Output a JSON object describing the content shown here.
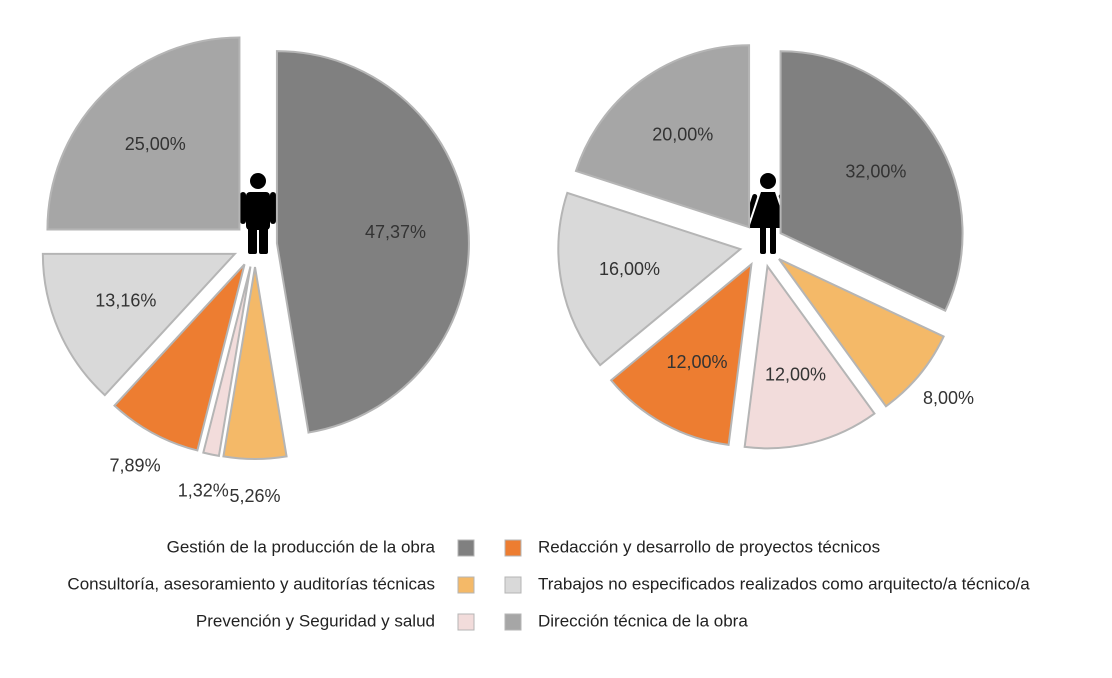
{
  "legend": {
    "items": [
      {
        "name": "Gestión de la producción de la obra",
        "color": "#808080"
      },
      {
        "name": "Consultoría, asesoramiento y auditorías técnicas",
        "color": "#F4B968"
      },
      {
        "name": "Prevención y Seguridad y salud",
        "color": "#F2DCDB"
      },
      {
        "name": "Redacción y desarrollo de proyectos técnicos",
        "color": "#ED7D31"
      },
      {
        "name": "Trabajos no especificados realizados como arquitecto/a técnico/a",
        "color": "#D9D9D9"
      },
      {
        "name": "Dirección técnica de la obra",
        "color": "#A6A6A6"
      }
    ]
  },
  "chart_data": [
    {
      "type": "pie",
      "values": [
        47.37,
        5.26,
        1.32,
        7.89,
        13.16,
        25
      ],
      "value_labels": [
        "47,37%",
        "5,26%",
        "1,32%",
        "7,89%",
        "13,16%",
        "25,00%"
      ]
    },
    {
      "type": "pie",
      "values": [
        32,
        8,
        12,
        12,
        16,
        20
      ],
      "value_labels": [
        "32,00%",
        "8,00%",
        "12,00%",
        "12,00%",
        "16,00%",
        "20,00%"
      ]
    }
  ]
}
